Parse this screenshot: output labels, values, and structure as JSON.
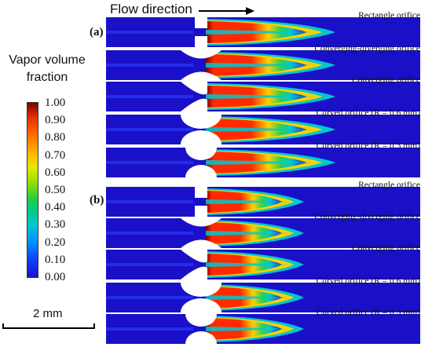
{
  "header": {
    "flow_direction": "Flow direction"
  },
  "legend": {
    "title": "Vapor volume fraction",
    "ticks": [
      "1.00",
      "0.90",
      "0.80",
      "0.70",
      "0.60",
      "0.50",
      "0.40",
      "0.30",
      "0.20",
      "0.10",
      "0.00"
    ],
    "colors": {
      "max": "#7a0000",
      "high": "#ff2a00",
      "mid_high": "#ffd000",
      "mid": "#30d050",
      "low": "#00c8d0",
      "min": "#1a10c8"
    }
  },
  "scale_bar": {
    "label": "2 mm"
  },
  "panels": [
    {
      "label": "(a)",
      "orifices": [
        {
          "name": "Rectangle orifice",
          "shape": "rectangle"
        },
        {
          "name": "Converging-diverging orifice",
          "shape": "converging-diverging"
        },
        {
          "name": "Converging orifice",
          "shape": "converging"
        },
        {
          "name": "Curved orifice (R = 0.6 mm)",
          "shape": "curved-large"
        },
        {
          "name": "Curved orifice (R = 0.3 mm)",
          "shape": "curved-small"
        }
      ]
    },
    {
      "label": "(b)",
      "orifices": [
        {
          "name": "Rectangle orifice",
          "shape": "rectangle"
        },
        {
          "name": "Converging-diverging orifice",
          "shape": "converging-diverging"
        },
        {
          "name": "Converging orifice",
          "shape": "converging"
        },
        {
          "name": "Curved orifice (R = 0.6 mm)",
          "shape": "curved-large"
        },
        {
          "name": "Curved orifice (R = 0.3 mm)",
          "shape": "curved-small"
        }
      ]
    }
  ]
}
